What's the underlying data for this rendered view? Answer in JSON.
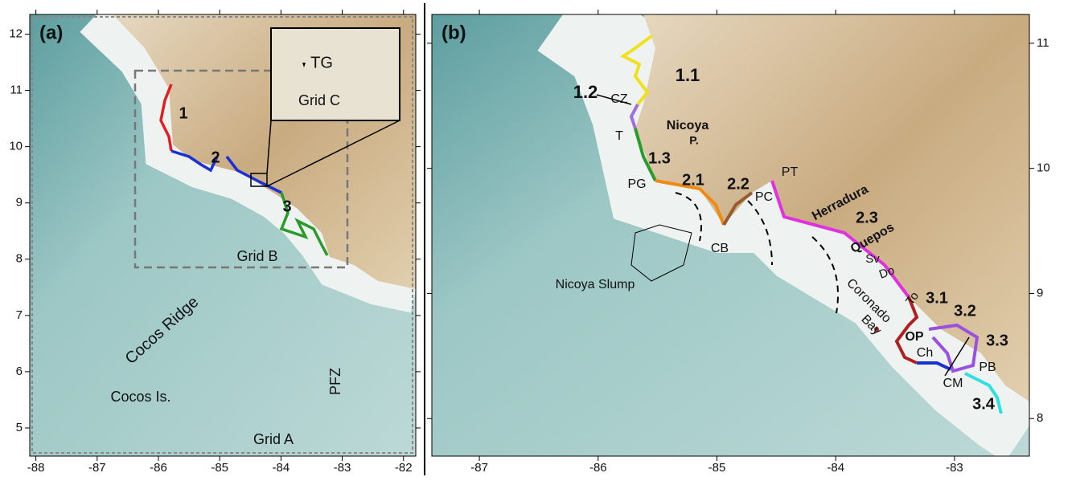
{
  "panels": [
    {
      "label": "(a)",
      "xlim": [
        -88.1,
        -81.8
      ],
      "ylim": [
        4.5,
        12.35
      ],
      "xticks": [
        -88,
        -87,
        -86,
        -85,
        -84,
        -83,
        -82
      ],
      "yticks": [
        5,
        6,
        7,
        8,
        9,
        10,
        11,
        12
      ],
      "annotations": [
        "1",
        "2",
        "3",
        "TG",
        "Grid C",
        "Grid B",
        "Cocos Ridge",
        "Cocos Is.",
        "PFZ",
        "Grid A"
      ]
    },
    {
      "label": "(b)",
      "xlim": [
        -87.4,
        -82.37
      ],
      "ylim": [
        7.7,
        11.23
      ],
      "xticks": [
        -87,
        -86,
        -85,
        -84,
        -83
      ],
      "yticks": [
        8,
        9,
        10,
        11
      ],
      "annotations": [
        "1.1",
        "1.2",
        "CZ",
        "T",
        "Nicoya",
        "P.",
        "1.3",
        "PG",
        "2.1",
        "2.2",
        "PC",
        "PT",
        "Herradura",
        "2.3",
        "Quepos",
        "Sv",
        "Do",
        "To",
        "CB",
        "Nicoya Slump",
        "Coronado",
        "Bay",
        "3.1",
        "3.2",
        "3.3",
        "OP",
        "Ch",
        "PB",
        "CM",
        "3.4"
      ]
    }
  ]
}
